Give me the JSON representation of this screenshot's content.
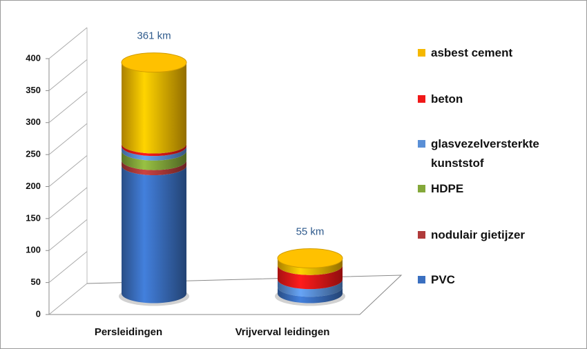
{
  "chart_data": {
    "type": "bar3d-cylinder-stacked",
    "categories": [
      "Persleidingen",
      "Vrijverval leidingen"
    ],
    "series": [
      {
        "name": "PVC",
        "color": "#3a6fc0",
        "values": [
          200,
          10
        ]
      },
      {
        "name": "nodulair gietijzer",
        "color": "#b03a3a",
        "values": [
          8,
          0
        ]
      },
      {
        "name": "HDPE",
        "color": "#84a83a",
        "values": [
          15,
          0
        ]
      },
      {
        "name": "glasvezelversterkte kunststof",
        "color": "#5a8fd6",
        "values": [
          7,
          12
        ]
      },
      {
        "name": "beton",
        "color": "#f01818",
        "values": [
          4,
          22
        ]
      },
      {
        "name": "asbest cement",
        "color": "#f5b800",
        "values": [
          127,
          11
        ]
      }
    ],
    "totals": [
      361,
      55
    ],
    "total_labels": [
      "361 km",
      "55 km"
    ],
    "ylim": [
      0,
      400
    ],
    "yticks": [
      0,
      50,
      100,
      150,
      200,
      250,
      300,
      350,
      400
    ],
    "grid": true,
    "legend": "right"
  }
}
